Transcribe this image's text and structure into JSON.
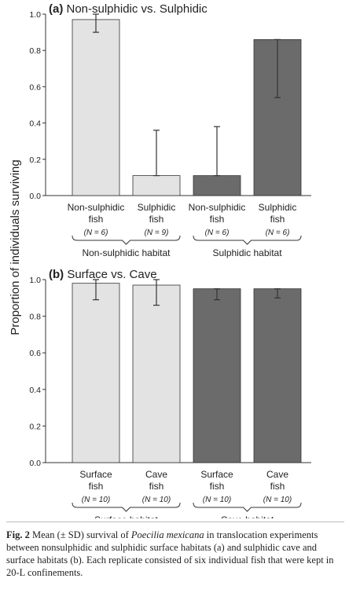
{
  "figure": {
    "y_axis_label": "Proportion of individuals surviving",
    "caption": {
      "label": "Fig. 2",
      "text_before_species": "Mean (± SD) survival of",
      "species": "Poecilia mexicana",
      "text_after_species": "in translocation experiments between nonsulphidic and sulphidic surface habitats (a) and sulphidic cave and surface habitats (b). Each replicate consisted of six individual fish that were kept in 20-L confinements."
    }
  },
  "colors": {
    "light_bar": "#e3e3e3",
    "dark_bar": "#6b6b6b",
    "axis": "#333333",
    "error": "#333333"
  },
  "chart_data": [
    {
      "type": "bar",
      "panel": "(a)",
      "title": "Non-sulphidic vs. Sulphidic",
      "ylabel": "Proportion of individuals surviving",
      "ylim": [
        0,
        1.0
      ],
      "yticks": [
        "0.0",
        "0.2",
        "0.4",
        "0.6",
        "0.8",
        "1.0"
      ],
      "grid": false,
      "bars": [
        {
          "line1": "Non-sulphidic",
          "line2": "fish",
          "n": "(N = 6)",
          "value": 0.97,
          "err_low": 0.07,
          "err_high": 0.03,
          "shade": "light"
        },
        {
          "line1": "Sulphidic",
          "line2": "fish",
          "n": "(N = 9)",
          "value": 0.11,
          "err_low": 0.0,
          "err_high": 0.25,
          "shade": "light"
        },
        {
          "line1": "Non-sulphidic",
          "line2": "fish",
          "n": "(N = 6)",
          "value": 0.11,
          "err_low": 0.0,
          "err_high": 0.27,
          "shade": "dark"
        },
        {
          "line1": "Sulphidic",
          "line2": "fish",
          "n": "(N = 6)",
          "value": 0.86,
          "err_low": 0.32,
          "err_high": 0.0,
          "shade": "dark"
        }
      ],
      "groups": [
        {
          "label": "Non-sulphidic habitat"
        },
        {
          "label": "Sulphidic habitat"
        }
      ]
    },
    {
      "type": "bar",
      "panel": "(b)",
      "title": "Surface vs. Cave",
      "ylabel": "Proportion of individuals surviving",
      "ylim": [
        0,
        1.0
      ],
      "yticks": [
        "0.0",
        "0.2",
        "0.4",
        "0.6",
        "0.8",
        "1.0"
      ],
      "grid": false,
      "bars": [
        {
          "line1": "Surface",
          "line2": "fish",
          "n": "(N = 10)",
          "value": 0.98,
          "err_low": 0.09,
          "err_high": 0.02,
          "shade": "light"
        },
        {
          "line1": "Cave",
          "line2": "fish",
          "n": "(N = 10)",
          "value": 0.97,
          "err_low": 0.11,
          "err_high": 0.03,
          "shade": "light"
        },
        {
          "line1": "Surface",
          "line2": "fish",
          "n": "(N = 10)",
          "value": 0.95,
          "err_low": 0.06,
          "err_high": 0.0,
          "shade": "dark"
        },
        {
          "line1": "Cave",
          "line2": "fish",
          "n": "(N = 10)",
          "value": 0.95,
          "err_low": 0.05,
          "err_high": 0.0,
          "shade": "dark"
        }
      ],
      "groups": [
        {
          "label": "Surface habitat"
        },
        {
          "label": "Cave habitat"
        }
      ]
    }
  ]
}
